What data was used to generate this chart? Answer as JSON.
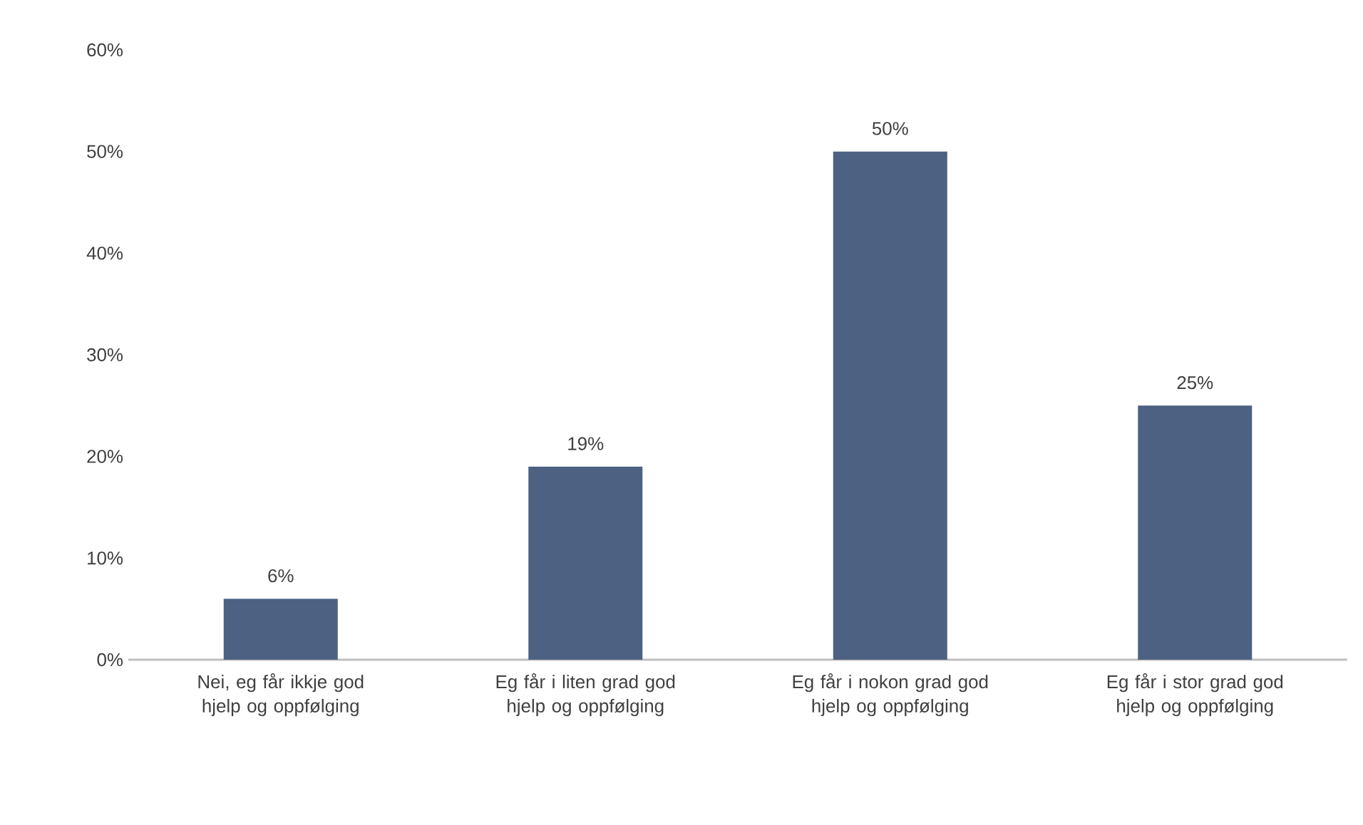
{
  "chart_data": {
    "type": "bar",
    "categories": [
      "Nei, eg får ikkje god hjelp og oppfølging",
      "Eg får i liten grad god hjelp og oppfølging",
      "Eg får i nokon grad god hjelp og oppfølging",
      "Eg får i stor grad god hjelp og oppfølging"
    ],
    "values": [
      6,
      19,
      50,
      25
    ],
    "value_labels": [
      "6%",
      "19%",
      "50%",
      "25%"
    ],
    "color": "#4d6182",
    "ylim": [
      0,
      60
    ],
    "yticks": [
      {
        "value": 0,
        "label": "0%"
      },
      {
        "value": 10,
        "label": "10%"
      },
      {
        "value": 20,
        "label": "20%"
      },
      {
        "value": 30,
        "label": "30%"
      },
      {
        "value": 40,
        "label": "40%"
      },
      {
        "value": 50,
        "label": "50%"
      },
      {
        "value": 60,
        "label": "60%"
      }
    ],
    "grid": false
  }
}
